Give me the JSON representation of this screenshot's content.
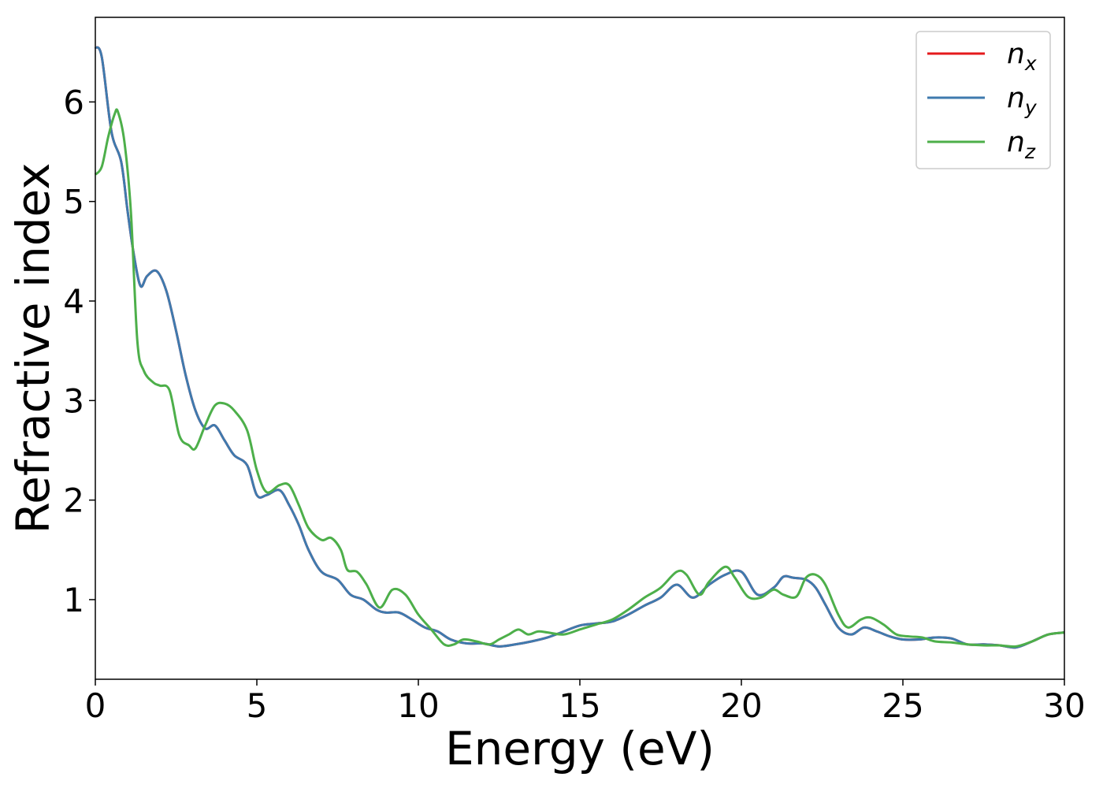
{
  "chart_data": {
    "type": "line",
    "xlabel": "Energy (eV)",
    "ylabel": "Refractive index",
    "xlim": [
      0,
      30
    ],
    "ylim": [
      0.2,
      6.85
    ],
    "xticks": [
      0,
      5,
      10,
      15,
      20,
      25,
      30
    ],
    "yticks": [
      1,
      2,
      3,
      4,
      5,
      6
    ],
    "grid": false,
    "legend_position": "top-right",
    "series": [
      {
        "name": "n_x",
        "label_base": "n",
        "label_sub": "x",
        "color": "#e41a1c",
        "x": [
          0,
          0.2,
          0.5,
          0.8,
          1.0,
          1.2,
          1.4,
          1.6,
          1.9,
          2.2,
          2.5,
          2.8,
          3.1,
          3.4,
          3.7,
          4.0,
          4.3,
          4.7,
          5.0,
          5.3,
          5.7,
          6.0,
          6.3,
          6.6,
          7.0,
          7.5,
          7.9,
          8.3,
          8.7,
          9.0,
          9.4,
          9.8,
          10.2,
          10.6,
          11.0,
          11.5,
          12.0,
          12.5,
          13.0,
          13.5,
          14.0,
          14.5,
          15.0,
          15.5,
          16.0,
          16.5,
          17.0,
          17.5,
          18.0,
          18.5,
          19.0,
          19.5,
          20.0,
          20.5,
          21.0,
          21.3,
          21.6,
          22.0,
          22.3,
          22.6,
          23.0,
          23.4,
          23.8,
          24.2,
          24.6,
          25.0,
          25.5,
          26.0,
          26.5,
          27.0,
          27.5,
          28.0,
          28.5,
          29.0,
          29.5,
          30.0
        ],
        "values": [
          6.55,
          6.45,
          5.7,
          5.4,
          4.9,
          4.45,
          4.15,
          4.25,
          4.3,
          4.1,
          3.7,
          3.25,
          2.9,
          2.72,
          2.75,
          2.6,
          2.45,
          2.35,
          2.05,
          2.05,
          2.1,
          1.95,
          1.75,
          1.5,
          1.28,
          1.2,
          1.05,
          1.0,
          0.9,
          0.87,
          0.87,
          0.8,
          0.72,
          0.68,
          0.6,
          0.56,
          0.56,
          0.53,
          0.55,
          0.58,
          0.62,
          0.68,
          0.74,
          0.76,
          0.78,
          0.85,
          0.94,
          1.02,
          1.15,
          1.02,
          1.15,
          1.25,
          1.28,
          1.05,
          1.12,
          1.23,
          1.22,
          1.2,
          1.12,
          0.95,
          0.72,
          0.65,
          0.72,
          0.68,
          0.63,
          0.6,
          0.6,
          0.62,
          0.61,
          0.55,
          0.55,
          0.54,
          0.52,
          0.58,
          0.65,
          0.67
        ]
      },
      {
        "name": "n_y",
        "label_base": "n",
        "label_sub": "y",
        "color": "#3f7aae",
        "x": [
          0,
          0.2,
          0.5,
          0.8,
          1.0,
          1.2,
          1.4,
          1.6,
          1.9,
          2.2,
          2.5,
          2.8,
          3.1,
          3.4,
          3.7,
          4.0,
          4.3,
          4.7,
          5.0,
          5.3,
          5.7,
          6.0,
          6.3,
          6.6,
          7.0,
          7.5,
          7.9,
          8.3,
          8.7,
          9.0,
          9.4,
          9.8,
          10.2,
          10.6,
          11.0,
          11.5,
          12.0,
          12.5,
          13.0,
          13.5,
          14.0,
          14.5,
          15.0,
          15.5,
          16.0,
          16.5,
          17.0,
          17.5,
          18.0,
          18.5,
          19.0,
          19.5,
          20.0,
          20.5,
          21.0,
          21.3,
          21.6,
          22.0,
          22.3,
          22.6,
          23.0,
          23.4,
          23.8,
          24.2,
          24.6,
          25.0,
          25.5,
          26.0,
          26.5,
          27.0,
          27.5,
          28.0,
          28.5,
          29.0,
          29.5,
          30.0
        ],
        "values": [
          6.55,
          6.45,
          5.7,
          5.4,
          4.9,
          4.45,
          4.15,
          4.25,
          4.3,
          4.1,
          3.7,
          3.25,
          2.9,
          2.72,
          2.75,
          2.6,
          2.45,
          2.35,
          2.05,
          2.05,
          2.1,
          1.95,
          1.75,
          1.5,
          1.28,
          1.2,
          1.05,
          1.0,
          0.9,
          0.87,
          0.87,
          0.8,
          0.72,
          0.68,
          0.6,
          0.56,
          0.56,
          0.53,
          0.55,
          0.58,
          0.62,
          0.68,
          0.74,
          0.76,
          0.78,
          0.85,
          0.94,
          1.02,
          1.15,
          1.02,
          1.15,
          1.25,
          1.28,
          1.05,
          1.12,
          1.23,
          1.22,
          1.2,
          1.12,
          0.95,
          0.72,
          0.65,
          0.72,
          0.68,
          0.63,
          0.6,
          0.6,
          0.62,
          0.61,
          0.55,
          0.55,
          0.54,
          0.52,
          0.58,
          0.65,
          0.67
        ]
      },
      {
        "name": "n_z",
        "label_base": "n",
        "label_sub": "z",
        "color": "#4daf4a",
        "x": [
          0,
          0.2,
          0.4,
          0.6,
          0.7,
          0.9,
          1.1,
          1.3,
          1.5,
          1.8,
          2.0,
          2.3,
          2.6,
          2.9,
          3.1,
          3.4,
          3.7,
          4.0,
          4.3,
          4.7,
          5.0,
          5.3,
          5.7,
          6.0,
          6.3,
          6.6,
          7.0,
          7.3,
          7.6,
          7.8,
          8.1,
          8.4,
          8.8,
          9.2,
          9.6,
          10.0,
          10.4,
          10.8,
          11.1,
          11.4,
          11.8,
          12.2,
          12.5,
          12.8,
          13.1,
          13.4,
          13.7,
          14.0,
          14.5,
          15.0,
          15.5,
          16.0,
          16.5,
          17.0,
          17.5,
          18.0,
          18.3,
          18.7,
          19.0,
          19.5,
          19.8,
          20.2,
          20.6,
          21.0,
          21.3,
          21.7,
          22.0,
          22.3,
          22.6,
          23.0,
          23.3,
          23.7,
          24.0,
          24.4,
          24.8,
          25.2,
          25.6,
          26.0,
          26.5,
          27.0,
          27.5,
          28.0,
          28.5,
          29.0,
          29.5,
          30.0
        ],
        "values": [
          5.27,
          5.35,
          5.65,
          5.88,
          5.9,
          5.6,
          4.9,
          3.6,
          3.3,
          3.18,
          3.15,
          3.1,
          2.65,
          2.55,
          2.52,
          2.75,
          2.95,
          2.97,
          2.9,
          2.7,
          2.3,
          2.08,
          2.15,
          2.15,
          1.95,
          1.72,
          1.6,
          1.62,
          1.5,
          1.3,
          1.28,
          1.15,
          0.92,
          1.1,
          1.05,
          0.85,
          0.7,
          0.55,
          0.55,
          0.6,
          0.58,
          0.55,
          0.6,
          0.65,
          0.7,
          0.65,
          0.68,
          0.67,
          0.65,
          0.7,
          0.75,
          0.8,
          0.9,
          1.02,
          1.12,
          1.28,
          1.25,
          1.05,
          1.18,
          1.33,
          1.22,
          1.03,
          1.02,
          1.1,
          1.05,
          1.03,
          1.22,
          1.25,
          1.15,
          0.85,
          0.72,
          0.8,
          0.82,
          0.75,
          0.65,
          0.63,
          0.62,
          0.58,
          0.57,
          0.55,
          0.54,
          0.54,
          0.53,
          0.58,
          0.65,
          0.67
        ]
      }
    ]
  }
}
